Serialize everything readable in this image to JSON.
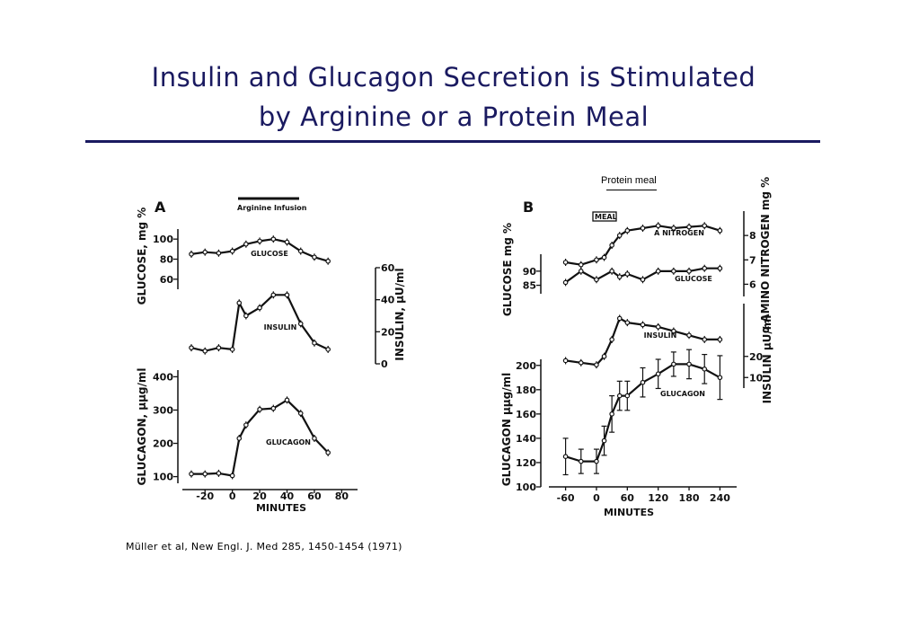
{
  "slide": {
    "title_line1": "Insulin and Glucagon Secretion is Stimulated",
    "title_line2": "by Arginine or a Protein Meal",
    "protein_meal_label": "Protein meal",
    "citation": "Müller et al, New Engl. J. Med 285, 1450-1454 (1971)",
    "colors": {
      "title": "#1a1a60",
      "ink": "#111111"
    }
  },
  "chart_data": [
    {
      "type": "line",
      "panel_label": "A",
      "annotation": "Arginine Infusion",
      "xlabel": "MINUTES",
      "x_ticks": [
        "-20",
        "0",
        "20",
        "40",
        "60",
        "80"
      ],
      "xlim": [
        -30,
        85
      ],
      "subplots": [
        {
          "ylabel": "GLUCOSE, mg %",
          "y_ticks": [
            "100",
            "80",
            "60"
          ],
          "ylim": [
            50,
            110
          ],
          "series": [
            {
              "label": "GLUCOSE",
              "x": [
                -30,
                -20,
                -10,
                0,
                10,
                20,
                30,
                40,
                50,
                60,
                70
              ],
              "y": [
                85,
                87,
                86,
                88,
                95,
                98,
                100,
                97,
                88,
                82,
                78
              ]
            }
          ]
        },
        {
          "ylabel": "INSULIN, μU/ml",
          "y_ticks": [
            "60",
            "40",
            "20",
            "0"
          ],
          "ylim": [
            0,
            60
          ],
          "series": [
            {
              "label": "INSULIN",
              "x": [
                -30,
                -20,
                -10,
                0,
                5,
                10,
                20,
                30,
                40,
                50,
                60,
                70
              ],
              "y": [
                10,
                8,
                10,
                9,
                38,
                30,
                35,
                43,
                43,
                25,
                13,
                9
              ]
            }
          ]
        },
        {
          "ylabel": "GLUCAGON, μμg/ml",
          "y_ticks": [
            "400",
            "300",
            "200",
            "100"
          ],
          "ylim": [
            80,
            420
          ],
          "series": [
            {
              "label": "GLUCAGON",
              "x": [
                -30,
                -20,
                -10,
                0,
                5,
                10,
                20,
                30,
                40,
                50,
                60,
                70
              ],
              "y": [
                108,
                108,
                110,
                103,
                215,
                255,
                302,
                305,
                330,
                290,
                215,
                172
              ]
            }
          ]
        }
      ]
    },
    {
      "type": "line",
      "panel_label": "B",
      "annotation": "MEAL",
      "xlabel": "MINUTES",
      "x_ticks": [
        "-60",
        "0",
        "60",
        "120",
        "180",
        "240"
      ],
      "xlim": [
        -75,
        255
      ],
      "subplots": [
        {
          "ylabel": "α AMINO NITROGEN mg %",
          "y_ticks": [
            "8",
            "7",
            "6"
          ],
          "ylim": [
            5.5,
            9
          ],
          "series": [
            {
              "label": "A NITROGEN",
              "x": [
                -60,
                -30,
                0,
                15,
                30,
                45,
                60,
                90,
                120,
                150,
                180,
                210,
                240
              ],
              "y": [
                6.9,
                6.8,
                7.0,
                7.1,
                7.6,
                8.0,
                8.2,
                8.3,
                8.4,
                8.3,
                8.35,
                8.4,
                8.2
              ]
            }
          ]
        },
        {
          "ylabel": "GLUCOSE mg %",
          "y_ticks": [
            "90",
            "85"
          ],
          "ylim": [
            82,
            96
          ],
          "series": [
            {
              "label": "GLUCOSE",
              "x": [
                -60,
                -30,
                0,
                30,
                45,
                60,
                90,
                120,
                150,
                180,
                210,
                240
              ],
              "y": [
                86,
                90,
                87,
                90,
                88,
                89,
                87,
                90,
                90,
                90,
                91,
                91
              ]
            }
          ]
        },
        {
          "ylabel": "INSULIN μU/ml",
          "y_ticks": [
            "20",
            "10"
          ],
          "ylim": [
            5,
            45
          ],
          "series": [
            {
              "label": "INSULIN",
              "x": [
                -60,
                -30,
                0,
                15,
                30,
                45,
                60,
                90,
                120,
                150,
                180,
                210,
                240
              ],
              "y": [
                18,
                17,
                16,
                20,
                28,
                38,
                36,
                35,
                34,
                32,
                30,
                28,
                28
              ]
            }
          ]
        },
        {
          "ylabel": "GLUCAGON μμg/ml",
          "y_ticks": [
            "200",
            "180",
            "160",
            "140",
            "120",
            "100"
          ],
          "ylim": [
            100,
            205
          ],
          "series": [
            {
              "label": "GLUCAGON",
              "x": [
                -60,
                -30,
                0,
                15,
                30,
                45,
                60,
                90,
                120,
                150,
                180,
                210,
                240
              ],
              "y": [
                125,
                121,
                121,
                138,
                160,
                175,
                175,
                186,
                193,
                201,
                201,
                197,
                190
              ],
              "err": [
                15,
                10,
                10,
                12,
                15,
                12,
                12,
                12,
                12,
                10,
                12,
                12,
                18
              ]
            }
          ]
        }
      ]
    }
  ]
}
